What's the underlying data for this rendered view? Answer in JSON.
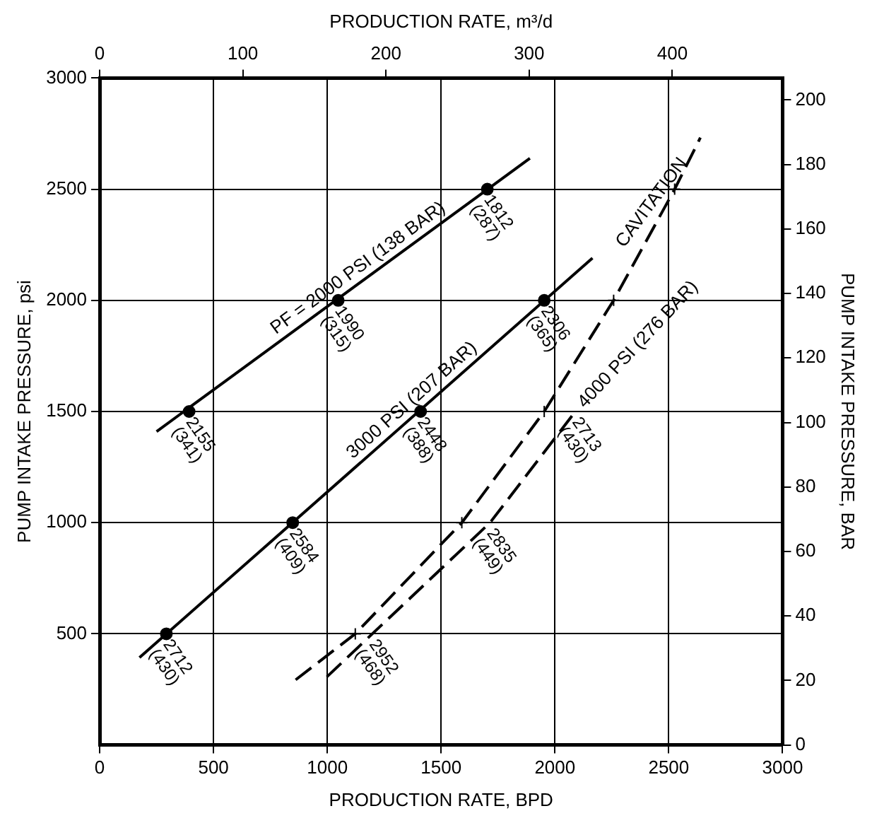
{
  "chart_data": {
    "type": "line",
    "xlabel": "PRODUCTION RATE, BPD",
    "x2label": "PRODUCTION RATE, m³/d",
    "ylabel": "PUMP INTAKE PRESSURE, psi",
    "y2label": "PUMP INTAKE PRESSURE, BAR",
    "xlim": [
      0,
      3000
    ],
    "xticks": [
      0,
      500,
      1000,
      1500,
      2000,
      2500,
      3000
    ],
    "x2lim": [
      0,
      477
    ],
    "x2ticks": [
      0,
      100,
      200,
      300,
      400
    ],
    "ylim": [
      0,
      3000
    ],
    "yticks": [
      500,
      1000,
      1500,
      2000,
      2500,
      3000
    ],
    "y2lim": [
      0,
      206.8
    ],
    "y2ticks": [
      0,
      20,
      40,
      60,
      80,
      100,
      120,
      140,
      160,
      180,
      200
    ],
    "grid": true,
    "legend": false,
    "annotations": [
      {
        "text": "2952 (468)",
        "x": 1198,
        "y": 500
      },
      {
        "text": "2835 (449)",
        "x": 1715,
        "y": 1000
      },
      {
        "text": "2713 (430)",
        "x": 2090,
        "y": 1500
      }
    ],
    "series": [
      {
        "name": "PF = 2000 PSI (138 BAR)",
        "color": "#000000",
        "marker": "none",
        "line_style": "solid",
        "x": [
          250,
          1890
        ],
        "values": [
          1410,
          2639
        ]
      },
      {
        "type": "scatter",
        "color": "#000000",
        "marker": "circle",
        "x": [
          393,
          1048,
          1703
        ],
        "values": [
          1500,
          2000,
          2500
        ],
        "value_labels": [
          "2155 (341)",
          "1990 (315)",
          "1812 (287)"
        ]
      },
      {
        "name": "3000 PSI (207 BAR)",
        "color": "#000000",
        "marker": "none",
        "line_style": "solid",
        "x": [
          175,
          2165
        ],
        "values": [
          393,
          2190
        ]
      },
      {
        "type": "scatter",
        "color": "#000000",
        "marker": "circle",
        "x": [
          293,
          848,
          1410,
          1953
        ],
        "values": [
          500,
          1000,
          1500,
          2000
        ],
        "value_labels": [
          "2712 (430)",
          "2584 (409)",
          "2448 (388)",
          "2306 (365)"
        ]
      },
      {
        "name": "4000 PSI (276 BAR)",
        "color": "#000000",
        "marker": "none",
        "line_style": "dashed",
        "x": [
          998,
          1198,
          1715,
          2090
        ],
        "values": [
          306,
          500,
          1000,
          1500
        ]
      },
      {
        "name": "CAVITATION",
        "color": "#000000",
        "marker": "none",
        "line_style": "dashed",
        "x": [
          861,
          1123,
          1591,
          1953,
          2258,
          2526,
          2639
        ],
        "values": [
          293,
          500,
          1000,
          1500,
          2000,
          2500,
          2732
        ]
      },
      {
        "type": "scatter",
        "color": "#000000",
        "marker": "cross",
        "x": [
          1123,
          1591,
          1953,
          2258,
          2526
        ],
        "values": [
          500,
          1000,
          1500,
          2000,
          2500
        ]
      }
    ]
  }
}
